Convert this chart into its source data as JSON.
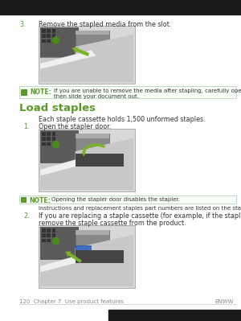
{
  "bg_color": "#ffffff",
  "top_bar_color": "#1a1a1a",
  "bottom_bar_color": "#1a1a1a",
  "step3_num": "3.",
  "step3_text": "Remove the stapled media from the slot.",
  "note1_label": "NOTE:",
  "note1_text": "If you are unable to remove the media after stapling, carefully open the stapler door and\nthen slide your document out.",
  "section_title": "Load staples",
  "section_title_color": "#5b9a2a",
  "section_intro": "Each staple cassette holds 1,500 unformed staples.",
  "step1_num": "1.",
  "step1_text": "Open the stapler door.",
  "note2_label": "NOTE:",
  "note2_text": "Opening the stapler door disables the stapler.",
  "note2_sub": "Instructions and replacement staples part numbers are listed on the stapler door.",
  "step2_num": "2.",
  "step2_line1": "If you are replacing a staple cassette (for example, if the staple cassette has run out of staples),",
  "step2_line2": "remove the staple cassette from the product.",
  "footer_left": "120  Chapter 7  Use product features",
  "footer_right": "ENWW",
  "footer_color": "#888888",
  "note_bg": "#ffffff",
  "note_border": "#aaccaa",
  "arrow_green": "#7ab328",
  "arrow_blue": "#3a6fc4",
  "text_color": "#333333",
  "note_label_color": "#5b9a2a",
  "lm": 0.08,
  "indent": 0.16,
  "text_size": 5.8,
  "note_size": 5.5,
  "title_size": 9.5,
  "footer_size": 5.0,
  "num_color": "#5b9a2a"
}
